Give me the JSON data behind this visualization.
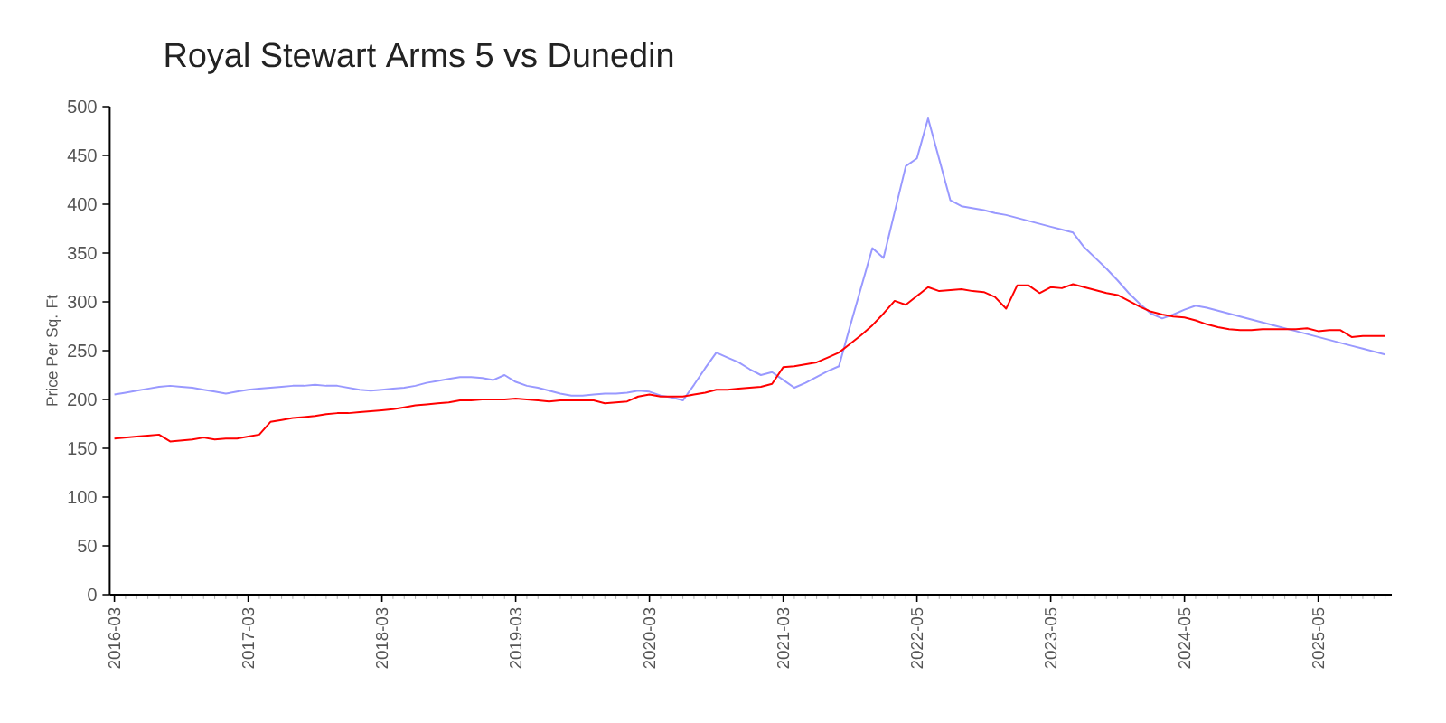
{
  "chart_data": {
    "type": "line",
    "title": "Royal Stewart Arms 5 vs Dunedin",
    "ylabel": "Price Per Sq. Ft",
    "categories": [
      "2016-03",
      null,
      null,
      null,
      null,
      null,
      null,
      null,
      null,
      null,
      null,
      null,
      "2017-03",
      null,
      null,
      null,
      null,
      null,
      null,
      null,
      null,
      null,
      null,
      null,
      "2018-03",
      null,
      null,
      null,
      null,
      null,
      null,
      null,
      null,
      null,
      null,
      null,
      "2019-03",
      null,
      null,
      null,
      null,
      null,
      null,
      null,
      null,
      null,
      null,
      null,
      "2020-03",
      null,
      null,
      null,
      null,
      null,
      null,
      null,
      null,
      null,
      null,
      null,
      "2021-03",
      null,
      null,
      null,
      null,
      null,
      null,
      null,
      null,
      null,
      null,
      null,
      "2022-05",
      null,
      null,
      null,
      null,
      null,
      null,
      null,
      null,
      null,
      null,
      null,
      "2023-05",
      null,
      null,
      null,
      null,
      null,
      null,
      null,
      null,
      null,
      null,
      null,
      "2024-05",
      null,
      null,
      null,
      null,
      null,
      null,
      null,
      null,
      null,
      null,
      null,
      "2025-05",
      null,
      null,
      null,
      null,
      null,
      null
    ],
    "series": [
      {
        "color": "#9999ff",
        "values": [
          205,
          207,
          209,
          211,
          213,
          214,
          213,
          212,
          210,
          208,
          206,
          208,
          210,
          211,
          212,
          213,
          214,
          214,
          215,
          214,
          214,
          212,
          210,
          209,
          210,
          211,
          212,
          214,
          217,
          219,
          221,
          223,
          223,
          222,
          220,
          225,
          218,
          214,
          212,
          209,
          206,
          204,
          204,
          205,
          206,
          206,
          207,
          209,
          208,
          204,
          202,
          199,
          215,
          232,
          248,
          243,
          238,
          231,
          225,
          228,
          220,
          212,
          217,
          223,
          229,
          234,
          275,
          315,
          355,
          345,
          392,
          439,
          447,
          488,
          446,
          404,
          398,
          396,
          394,
          391,
          389,
          386,
          383,
          380,
          377,
          374,
          371,
          356,
          345,
          334,
          322,
          309,
          298,
          288,
          283,
          287,
          292,
          296,
          294,
          291,
          288,
          285,
          282,
          279,
          276,
          273,
          270,
          267,
          264,
          261,
          258,
          255,
          252,
          249,
          246
        ]
      },
      {
        "color": "#ff0000",
        "values": [
          160,
          161,
          162,
          163,
          164,
          157,
          158,
          159,
          161,
          159,
          160,
          160,
          162,
          164,
          177,
          179,
          181,
          182,
          183,
          185,
          186,
          186,
          187,
          188,
          189,
          190,
          192,
          194,
          195,
          196,
          197,
          199,
          199,
          200,
          200,
          200,
          201,
          200,
          199,
          198,
          199,
          199,
          199,
          199,
          196,
          197,
          198,
          203,
          205,
          203,
          203,
          203,
          205,
          207,
          210,
          210,
          211,
          212,
          213,
          216,
          233,
          234,
          236,
          238,
          243,
          248,
          257,
          266,
          276,
          288,
          301,
          297,
          306,
          315,
          311,
          312,
          313,
          311,
          310,
          305,
          293,
          317,
          317,
          309,
          315,
          314,
          318,
          315,
          312,
          309,
          307,
          301,
          295,
          290,
          287,
          285,
          284,
          281,
          277,
          274,
          272,
          271,
          271,
          272,
          272,
          272,
          272,
          273,
          270,
          271,
          271,
          264,
          265,
          265,
          265
        ]
      }
    ],
    "ylim": [
      0,
      500
    ],
    "yticks": [
      0,
      50,
      100,
      150,
      200,
      250,
      300,
      350,
      400,
      450,
      500
    ]
  }
}
